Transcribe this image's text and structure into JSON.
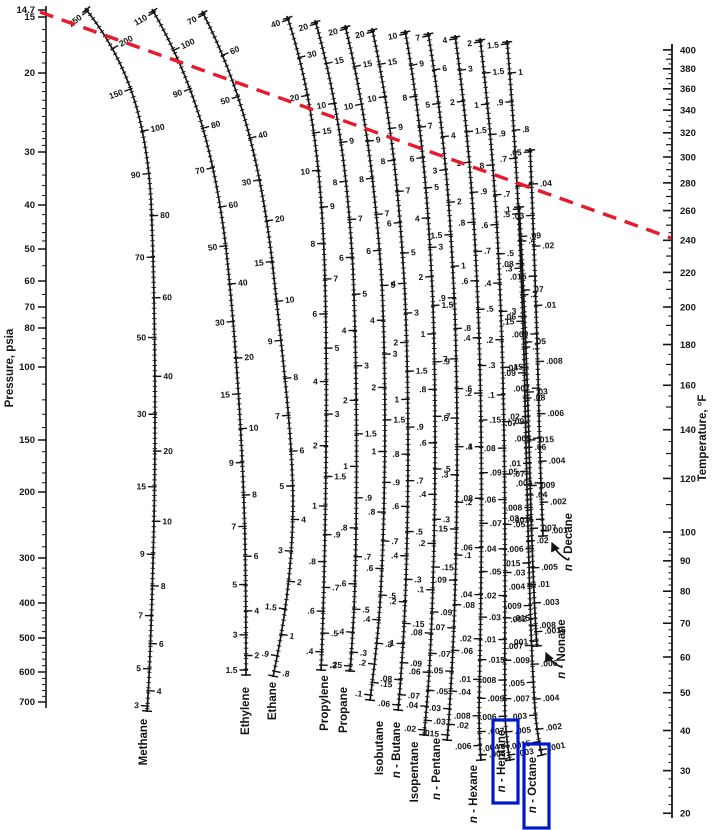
{
  "chart_data": {
    "type": "line",
    "kind": "nomograph (K-value alignment chart)",
    "pressure_axis": {
      "title": "Pressure, psia",
      "position": "left",
      "scale": "logarithmic",
      "range": [
        14.7,
        700
      ],
      "tick_labels": [
        "14.7",
        "15",
        "20",
        "30",
        "40",
        "50",
        "60",
        "70",
        "80",
        "100",
        "150",
        "200",
        "300",
        "400",
        "500",
        "600",
        "700"
      ]
    },
    "temperature_axis": {
      "title": "Temperature, °F",
      "position": "right",
      "range": [
        20,
        400
      ],
      "tick_labels": [
        "400",
        "380",
        "360",
        "340",
        "320",
        "300",
        "280",
        "260",
        "240",
        "220",
        "200",
        "180",
        "160",
        "140",
        "120",
        "100",
        "90",
        "80",
        "70",
        "60",
        "50",
        "40",
        "30",
        "20"
      ]
    },
    "scales": [
      {
        "id": "methane",
        "name": "Methane",
        "tick_labels": [
          "250",
          "200",
          "150",
          "100",
          "90",
          "80",
          "70",
          "60",
          "50",
          "40",
          "30",
          "20",
          "15",
          "10",
          "9",
          "8",
          "7",
          "6",
          "5",
          "4",
          "3"
        ]
      },
      {
        "id": "ethylene",
        "name": "Ethylene",
        "tick_labels": [
          "110",
          "100",
          "90",
          "80",
          "70",
          "60",
          "50",
          "40",
          "30",
          "20",
          "15",
          "10",
          "9",
          "8",
          "7",
          "6",
          "5",
          "4",
          "3",
          "2",
          "1.5"
        ]
      },
      {
        "id": "ethane",
        "name": "Ethane",
        "tick_labels": [
          "70",
          "60",
          "50",
          "40",
          "30",
          "20",
          "15",
          "10",
          "9",
          "8",
          "7",
          "6",
          "5",
          "4",
          "3",
          "2",
          "1.5",
          "1",
          ".9",
          ".8"
        ]
      },
      {
        "id": "propylene",
        "name": "Propylene",
        "tick_labels": [
          "40",
          "30",
          "20",
          "15",
          "10",
          "9",
          "8",
          "7",
          "6",
          "5",
          "4",
          "3",
          "2",
          "1.5",
          "1",
          ".9",
          ".8",
          ".7",
          ".6",
          ".5",
          ".4",
          ".3"
        ]
      },
      {
        "id": "propane",
        "name": "Propane",
        "tick_labels": [
          "20",
          "15",
          "10",
          "9",
          "8",
          "7",
          "6",
          "5",
          "4",
          "3",
          "2",
          "1.5",
          "1",
          ".9",
          ".8",
          ".7",
          ".6",
          ".5",
          ".4",
          ".3",
          ".25"
        ]
      },
      {
        "id": "isobutane",
        "name": "Isobutane",
        "tick_labels": [
          "20",
          "15",
          "10",
          "9",
          "8",
          "7",
          "6",
          "5",
          "4",
          "3",
          "2",
          "1.5",
          "1",
          ".9",
          ".8",
          ".7",
          ".6",
          ".5",
          ".4",
          ".3",
          ".2",
          ".15",
          ".1"
        ]
      },
      {
        "id": "n-butane",
        "name": "n - Butane",
        "tick_labels": [
          "20",
          "15",
          "10",
          "9",
          "8",
          "7",
          "6",
          "5",
          "4",
          "3",
          "2",
          "1.5",
          "1",
          ".9",
          ".8",
          ".7",
          ".6",
          ".5",
          ".4",
          ".3",
          ".2",
          ".15",
          ".1",
          ".09",
          ".08",
          ".07",
          ".06"
        ]
      },
      {
        "id": "isopentane",
        "name": "Isopentane",
        "tick_labels": [
          "10",
          "9",
          "8",
          "7",
          "6",
          "5",
          "4",
          "3",
          "2",
          "1.5",
          "1",
          ".9",
          ".8",
          ".7",
          ".6",
          ".5",
          ".4",
          ".3",
          ".2",
          ".15",
          ".1",
          ".09",
          ".08",
          ".07",
          ".06",
          ".05",
          ".04",
          ".03",
          ".02"
        ]
      },
      {
        "id": "n-pentane",
        "name": "n - Pentane",
        "tick_labels": [
          "7",
          "6",
          "5",
          "4",
          "3",
          "2",
          "1.5",
          "1",
          ".9",
          ".8",
          ".7",
          ".6",
          ".5",
          ".4",
          ".3",
          ".2",
          ".15",
          ".1",
          ".09",
          ".08",
          ".07",
          ".06",
          ".05",
          ".04",
          ".03",
          ".02",
          ".015"
        ]
      },
      {
        "id": "n-hexane",
        "name": "n - Hexane",
        "tick_labels": [
          "4",
          "3",
          "2",
          "1.5",
          "1",
          ".9",
          ".8",
          ".7",
          ".6",
          ".5",
          ".4",
          ".3",
          ".2",
          ".15",
          ".1",
          ".09",
          ".08",
          ".07",
          ".06",
          ".05",
          ".04",
          ".03",
          ".02",
          ".015",
          ".01",
          ".009",
          ".008",
          ".007",
          ".006",
          ".005"
        ]
      },
      {
        "id": "n-heptane",
        "name": "n - Heptane",
        "tick_labels": [
          "2",
          "1.5",
          "1",
          ".9",
          ".8",
          ".7",
          ".6",
          ".5",
          ".4",
          ".3",
          ".2",
          ".15",
          ".1",
          ".09",
          ".08",
          ".07",
          ".06",
          ".05",
          ".04",
          ".03",
          ".02",
          ".015",
          ".01",
          ".009",
          ".008",
          ".007",
          ".006",
          ".005",
          ".004",
          ".003"
        ]
      },
      {
        "id": "n-octane",
        "name": "n - Octane",
        "tick_labels": [
          "1.5",
          "1",
          ".9",
          ".8",
          ".7",
          ".6",
          ".5",
          ".4",
          ".3",
          ".2",
          ".15",
          ".1",
          ".09",
          ".08",
          ".07",
          ".06",
          ".05",
          ".04",
          ".03",
          ".02",
          ".015",
          ".01",
          ".009",
          ".008",
          ".007",
          ".006",
          ".005",
          ".004",
          ".003",
          ".002",
          ".0015",
          ".001"
        ]
      },
      {
        "id": "n-nonane",
        "name": "n - Nonane",
        "tick_labels": [
          ".1",
          ".09",
          ".08",
          ".07",
          ".06",
          ".05",
          ".04",
          ".03",
          ".02",
          ".015",
          ".01",
          ".009",
          ".008",
          ".007",
          ".006",
          ".005",
          ".004",
          ".003",
          ".002",
          ".0015",
          ".001"
        ]
      },
      {
        "id": "n-decane",
        "name": "n - Decane",
        "tick_labels": [
          ".05",
          ".04",
          ".03",
          ".02",
          ".015",
          ".01",
          ".009",
          ".008",
          ".007",
          ".006",
          ".005",
          ".004",
          ".003",
          ".002",
          ".0015",
          ".001"
        ]
      }
    ],
    "reference_line": {
      "style": "dashed",
      "color": "#e8192c",
      "from": "pressure axis at 14.7 psia",
      "to": "temperature axis at ≈240 °F"
    },
    "highlights": [
      {
        "target": "n - Heptane",
        "shape": "rectangle",
        "color": "#0018cc"
      },
      {
        "target": "n - Octane",
        "shape": "rectangle",
        "color": "#0018cc"
      }
    ],
    "callout_arrows": [
      "n - Nonane",
      "n - Decane"
    ]
  }
}
